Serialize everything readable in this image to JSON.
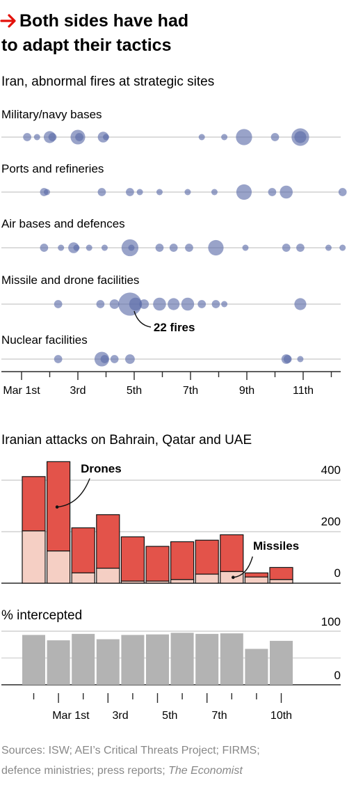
{
  "title_line1": "Both sides have had",
  "title_line2": "to adapt their tactics",
  "colors": {
    "accent": "#e3120b",
    "bubble": "#5b6aa8",
    "bubble_core": "#27318a",
    "drones": "#e3534a",
    "missiles": "#f5cfc4",
    "intercepted": "#b3b3b3",
    "grid": "#c8c8c8",
    "baseline": "#2a2a2a"
  },
  "sources": {
    "line1": "Sources: ISW; AEI’s Critical Threats Project; FIRMS;",
    "line2_prefix": "defence ministries; press reports; ",
    "line2_italic": "The Economist"
  },
  "chart_data": [
    {
      "type": "scatter",
      "title": "Iran, abnormal fires at strategic sites",
      "size_meaning": "number of fires",
      "x_ticks": [
        "Mar 1st",
        "3rd",
        "5th",
        "7th",
        "9th",
        "11th"
      ],
      "annotation": "22 fires",
      "rows": [
        {
          "label": "Military/navy bases",
          "points": [
            {
              "x": 0.2,
              "fires": 2
            },
            {
              "x": 0.55,
              "fires": 1
            },
            {
              "x": 1.0,
              "fires": 5
            },
            {
              "x": 1.1,
              "fires": 2
            },
            {
              "x": 2.0,
              "fires": 8
            },
            {
              "x": 2.05,
              "fires": 2
            },
            {
              "x": 2.9,
              "fires": 4
            },
            {
              "x": 3.0,
              "fires": 1
            },
            {
              "x": 6.4,
              "fires": 1
            },
            {
              "x": 7.2,
              "fires": 1
            },
            {
              "x": 7.9,
              "fires": 10
            },
            {
              "x": 9.0,
              "fires": 2
            },
            {
              "x": 9.9,
              "fires": 12
            },
            {
              "x": 9.9,
              "fires": 5
            }
          ]
        },
        {
          "label": "Ports and refineries",
          "points": [
            {
              "x": 0.8,
              "fires": 2
            },
            {
              "x": 0.9,
              "fires": 1
            },
            {
              "x": 2.85,
              "fires": 2
            },
            {
              "x": 3.85,
              "fires": 2
            },
            {
              "x": 4.2,
              "fires": 1
            },
            {
              "x": 4.9,
              "fires": 1
            },
            {
              "x": 5.9,
              "fires": 1
            },
            {
              "x": 6.85,
              "fires": 1
            },
            {
              "x": 7.9,
              "fires": 9
            },
            {
              "x": 8.9,
              "fires": 2
            },
            {
              "x": 9.4,
              "fires": 6
            },
            {
              "x": 11.4,
              "fires": 2
            }
          ]
        },
        {
          "label": "Air bases and defences",
          "points": [
            {
              "x": 0.8,
              "fires": 2
            },
            {
              "x": 1.4,
              "fires": 1
            },
            {
              "x": 1.85,
              "fires": 4
            },
            {
              "x": 1.95,
              "fires": 1
            },
            {
              "x": 2.4,
              "fires": 1
            },
            {
              "x": 2.95,
              "fires": 1
            },
            {
              "x": 3.85,
              "fires": 11
            },
            {
              "x": 3.9,
              "fires": 1
            },
            {
              "x": 4.9,
              "fires": 2
            },
            {
              "x": 5.4,
              "fires": 2
            },
            {
              "x": 5.95,
              "fires": 2
            },
            {
              "x": 6.9,
              "fires": 9
            },
            {
              "x": 7.95,
              "fires": 1
            },
            {
              "x": 9.4,
              "fires": 2
            },
            {
              "x": 9.9,
              "fires": 2
            },
            {
              "x": 10.9,
              "fires": 1
            },
            {
              "x": 11.4,
              "fires": 1
            }
          ]
        },
        {
          "label": "Missile and drone facilities",
          "points": [
            {
              "x": 1.3,
              "fires": 2
            },
            {
              "x": 2.8,
              "fires": 2
            },
            {
              "x": 3.3,
              "fires": 3
            },
            {
              "x": 3.85,
              "fires": 22
            },
            {
              "x": 4.05,
              "fires": 6
            },
            {
              "x": 4.35,
              "fires": 3
            },
            {
              "x": 4.9,
              "fires": 6
            },
            {
              "x": 5.4,
              "fires": 5
            },
            {
              "x": 5.9,
              "fires": 6
            },
            {
              "x": 6.4,
              "fires": 2
            },
            {
              "x": 6.9,
              "fires": 2
            },
            {
              "x": 7.2,
              "fires": 1
            },
            {
              "x": 9.9,
              "fires": 5
            }
          ]
        },
        {
          "label": "Nuclear facilities",
          "points": [
            {
              "x": 1.3,
              "fires": 2
            },
            {
              "x": 2.85,
              "fires": 8
            },
            {
              "x": 2.95,
              "fires": 2
            },
            {
              "x": 3.3,
              "fires": 2
            },
            {
              "x": 3.85,
              "fires": 3
            },
            {
              "x": 9.4,
              "fires": 3
            },
            {
              "x": 9.45,
              "fires": 2
            },
            {
              "x": 9.9,
              "fires": 1
            }
          ]
        }
      ]
    },
    {
      "type": "bar",
      "stacked": true,
      "title": "Iranian attacks on Bahrain, Qatar and UAE",
      "x_ticks": [
        "Mar 1st",
        "3rd",
        "5th",
        "7th",
        "10th"
      ],
      "ylim": [
        0,
        400
      ],
      "yticks": [
        0,
        200,
        400
      ],
      "series": [
        {
          "name": "Missiles",
          "values": [
            203,
            125,
            40,
            58,
            8,
            8,
            14,
            35,
            45,
            24,
            14
          ]
        },
        {
          "name": "Drones",
          "values": [
            211,
            347,
            175,
            208,
            172,
            135,
            147,
            132,
            143,
            16,
            47
          ]
        }
      ]
    },
    {
      "type": "bar",
      "title": "% intercepted",
      "x_ticks": [
        "Mar 1st",
        "3rd",
        "5th",
        "7th",
        "10th"
      ],
      "ylim": [
        0,
        100
      ],
      "yticks": [
        0,
        100
      ],
      "values": [
        93,
        83,
        95,
        85,
        93,
        94,
        97,
        95,
        96,
        67,
        82
      ]
    }
  ]
}
